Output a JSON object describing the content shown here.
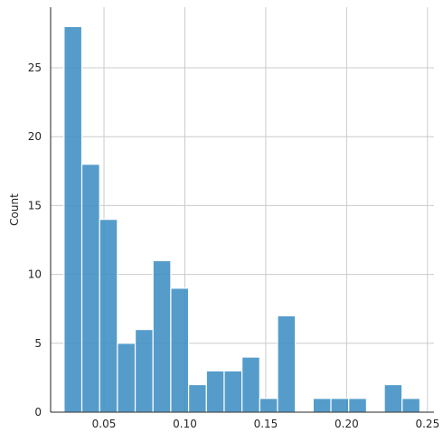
{
  "chart_data": {
    "type": "bar",
    "subtype": "histogram",
    "title": "",
    "xlabel": "",
    "ylabel": "Count",
    "xlim": [
      0.017,
      0.254
    ],
    "ylim": [
      0,
      29.4
    ],
    "xticks": [
      0.05,
      0.1,
      0.15,
      0.2,
      0.25
    ],
    "xtick_labels": [
      "0.05",
      "0.10",
      "0.15",
      "0.20",
      "0.25"
    ],
    "yticks": [
      0,
      5,
      10,
      15,
      20,
      25
    ],
    "ytick_labels": [
      "0",
      "5",
      "10",
      "15",
      "20",
      "25"
    ],
    "grid": true,
    "bar_color": "#3d8ec4",
    "bins": [
      {
        "x0": 0.0253,
        "x1": 0.0363,
        "count": 28
      },
      {
        "x0": 0.0363,
        "x1": 0.0473,
        "count": 18
      },
      {
        "x0": 0.0473,
        "x1": 0.0583,
        "count": 14
      },
      {
        "x0": 0.0583,
        "x1": 0.0693,
        "count": 5
      },
      {
        "x0": 0.0693,
        "x1": 0.0803,
        "count": 6
      },
      {
        "x0": 0.0803,
        "x1": 0.0913,
        "count": 11
      },
      {
        "x0": 0.0913,
        "x1": 0.1023,
        "count": 9
      },
      {
        "x0": 0.1023,
        "x1": 0.1133,
        "count": 2
      },
      {
        "x0": 0.1133,
        "x1": 0.1243,
        "count": 3
      },
      {
        "x0": 0.1243,
        "x1": 0.1353,
        "count": 3
      },
      {
        "x0": 0.1353,
        "x1": 0.1463,
        "count": 4
      },
      {
        "x0": 0.1463,
        "x1": 0.1573,
        "count": 1
      },
      {
        "x0": 0.1573,
        "x1": 0.1683,
        "count": 7
      },
      {
        "x0": 0.1683,
        "x1": 0.1793,
        "count": 0
      },
      {
        "x0": 0.1793,
        "x1": 0.1903,
        "count": 1
      },
      {
        "x0": 0.1903,
        "x1": 0.2013,
        "count": 1
      },
      {
        "x0": 0.2013,
        "x1": 0.2123,
        "count": 1
      },
      {
        "x0": 0.2123,
        "x1": 0.2233,
        "count": 0
      },
      {
        "x0": 0.2233,
        "x1": 0.2343,
        "count": 2
      },
      {
        "x0": 0.2343,
        "x1": 0.2453,
        "count": 1
      }
    ]
  }
}
